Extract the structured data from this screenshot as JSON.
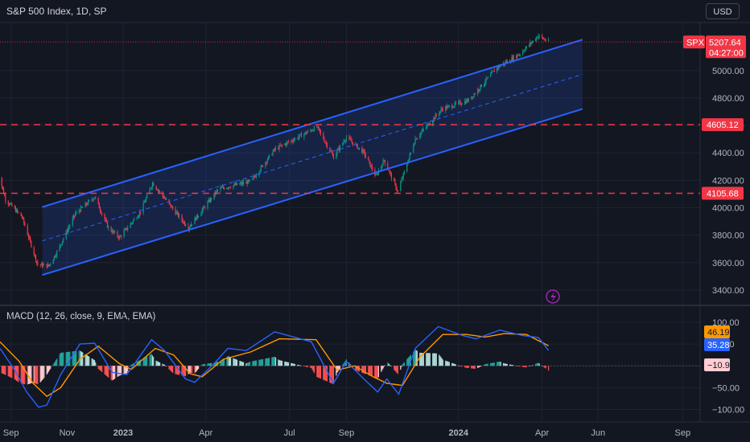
{
  "header": {
    "title": "S&P 500 Index, 1D, SP",
    "currency_button": "USD"
  },
  "price_tag": {
    "symbol": "SPX",
    "price": "5207.64",
    "countdown": "04:27:00"
  },
  "colors": {
    "background": "#131722",
    "up": "#089981",
    "down": "#f23645",
    "channel": "#2962ff",
    "macd_line": "#2962ff",
    "signal_line": "#ff9800",
    "level_line": "#f23645"
  },
  "chart_data": [
    {
      "type": "candlestick",
      "title": "S&P 500 Index, 1D, SP",
      "y_ticks": [
        3400,
        3600,
        3800,
        4000,
        4200,
        4400,
        4600,
        4800,
        5000
      ],
      "y_tick_labels": [
        "3400.00",
        "3600.00",
        "3800.00",
        "4000.00",
        "4200.00",
        "4400.00",
        "4600.00",
        "4800.00",
        "5000.00"
      ],
      "ylim": [
        3300,
        5350
      ],
      "x_range": [
        "2022-08-20",
        "2024-09-20"
      ],
      "x_tick_labels": [
        "Sep",
        "Nov",
        "2023",
        "Apr",
        "Jul",
        "Sep",
        "2024",
        "Apr",
        "Jun",
        "Sep"
      ],
      "x_tick_dates": [
        "2022-09-01",
        "2022-11-01",
        "2023-01-01",
        "2023-04-01",
        "2023-07-01",
        "2023-09-01",
        "2024-01-01",
        "2024-04-01",
        "2024-06-01",
        "2024-09-01"
      ],
      "price_path": [
        [
          "2022-08-16",
          4305
        ],
        [
          "2022-08-26",
          4060
        ],
        [
          "2022-09-13",
          3932
        ],
        [
          "2022-09-30",
          3585
        ],
        [
          "2022-10-12",
          3577
        ],
        [
          "2022-10-20",
          3665
        ],
        [
          "2022-11-10",
          3956
        ],
        [
          "2022-12-01",
          4080
        ],
        [
          "2022-12-16",
          3852
        ],
        [
          "2022-12-28",
          3783
        ],
        [
          "2023-01-20",
          3972
        ],
        [
          "2023-02-02",
          4180
        ],
        [
          "2023-03-01",
          3951
        ],
        [
          "2023-03-13",
          3855
        ],
        [
          "2023-04-15",
          4137
        ],
        [
          "2023-05-20",
          4192
        ],
        [
          "2023-06-15",
          4425
        ],
        [
          "2023-07-31",
          4588
        ],
        [
          "2023-08-18",
          4370
        ],
        [
          "2023-09-01",
          4515
        ],
        [
          "2023-09-20",
          4402
        ],
        [
          "2023-10-03",
          4229
        ],
        [
          "2023-10-12",
          4349
        ],
        [
          "2023-10-27",
          4117
        ],
        [
          "2023-11-15",
          4502
        ],
        [
          "2023-12-14",
          4719
        ],
        [
          "2024-01-12",
          4783
        ],
        [
          "2024-02-12",
          5021
        ],
        [
          "2024-03-08",
          5123
        ],
        [
          "2024-03-28",
          5254
        ],
        [
          "2024-04-08",
          5207.64
        ]
      ],
      "channel": {
        "upper": [
          [
            "2022-10-05",
            4005
          ],
          [
            "2024-05-15",
            5225
          ]
        ],
        "lower": [
          [
            "2022-10-05",
            3510
          ],
          [
            "2024-05-15",
            4720
          ]
        ],
        "mid": [
          [
            "2022-10-05",
            3758
          ],
          [
            "2024-05-15",
            4972
          ]
        ]
      },
      "horizontal_levels": [
        {
          "value": 4605.12,
          "label": "4605.12"
        },
        {
          "value": 4105.68,
          "label": "4105.68"
        }
      ],
      "last_price": 5207.64
    },
    {
      "type": "line",
      "title": "MACD (12, 26, close, 9, EMA, EMA)",
      "y_ticks": [
        100,
        50,
        0,
        -50,
        -100
      ],
      "y_tick_labels": [
        "100.00",
        "50.00",
        "0.00",
        "−50.00",
        "−100.00"
      ],
      "ylim": [
        -125,
        135
      ],
      "macd_path": [
        [
          "2022-08-20",
          40
        ],
        [
          "2022-09-05",
          -10
        ],
        [
          "2022-09-18",
          -60
        ],
        [
          "2022-10-01",
          -95
        ],
        [
          "2022-10-10",
          -90
        ],
        [
          "2022-10-25",
          -20
        ],
        [
          "2022-11-15",
          50
        ],
        [
          "2022-12-01",
          52
        ],
        [
          "2022-12-20",
          -15
        ],
        [
          "2023-01-05",
          -20
        ],
        [
          "2023-02-01",
          60
        ],
        [
          "2023-02-15",
          35
        ],
        [
          "2023-03-10",
          -30
        ],
        [
          "2023-03-20",
          -38
        ],
        [
          "2023-04-10",
          5
        ],
        [
          "2023-04-25",
          40
        ],
        [
          "2023-05-15",
          35
        ],
        [
          "2023-06-15",
          78
        ],
        [
          "2023-07-25",
          55
        ],
        [
          "2023-08-18",
          -40
        ],
        [
          "2023-09-01",
          10
        ],
        [
          "2023-09-20",
          -30
        ],
        [
          "2023-10-05",
          -60
        ],
        [
          "2023-10-15",
          -30
        ],
        [
          "2023-10-28",
          -65
        ],
        [
          "2023-11-15",
          40
        ],
        [
          "2023-12-10",
          90
        ],
        [
          "2024-01-05",
          70
        ],
        [
          "2024-01-20",
          62
        ],
        [
          "2024-02-15",
          82
        ],
        [
          "2024-03-10",
          70
        ],
        [
          "2024-03-28",
          65
        ],
        [
          "2024-04-08",
          35.28
        ]
      ],
      "signal_path": [
        [
          "2022-08-20",
          55
        ],
        [
          "2022-09-10",
          10
        ],
        [
          "2022-09-25",
          -40
        ],
        [
          "2022-10-10",
          -70
        ],
        [
          "2022-10-25",
          -50
        ],
        [
          "2022-11-15",
          15
        ],
        [
          "2022-12-05",
          45
        ],
        [
          "2022-12-28",
          5
        ],
        [
          "2023-01-10",
          -8
        ],
        [
          "2023-02-05",
          40
        ],
        [
          "2023-02-25",
          25
        ],
        [
          "2023-03-15",
          -18
        ],
        [
          "2023-03-28",
          -25
        ],
        [
          "2023-04-20",
          15
        ],
        [
          "2023-05-20",
          32
        ],
        [
          "2023-06-20",
          62
        ],
        [
          "2023-07-30",
          60
        ],
        [
          "2023-08-22",
          -10
        ],
        [
          "2023-09-10",
          0
        ],
        [
          "2023-09-30",
          -25
        ],
        [
          "2023-10-15",
          -40
        ],
        [
          "2023-11-01",
          -45
        ],
        [
          "2023-11-20",
          20
        ],
        [
          "2023-12-15",
          72
        ],
        [
          "2024-01-10",
          72
        ],
        [
          "2024-01-30",
          66
        ],
        [
          "2024-02-20",
          74
        ],
        [
          "2024-03-15",
          72
        ],
        [
          "2024-04-08",
          46.19
        ]
      ],
      "current": {
        "signal": "46.19",
        "macd": "35.28",
        "histogram": "−10.91"
      }
    }
  ]
}
